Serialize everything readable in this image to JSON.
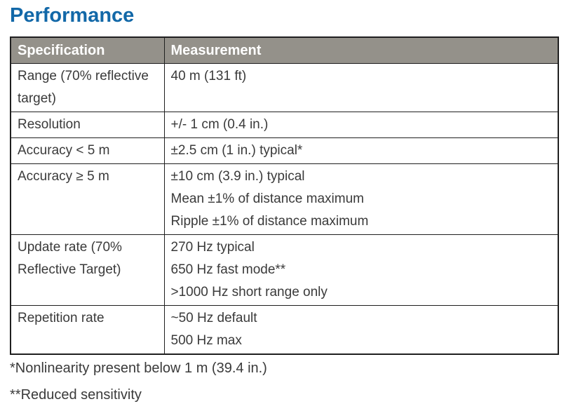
{
  "title": "Performance",
  "table": {
    "headers": [
      "Specification",
      "Measurement"
    ],
    "rows": [
      {
        "spec": "Range (70% reflective target)",
        "measurements": [
          "40 m (131 ft)"
        ]
      },
      {
        "spec": "Resolution",
        "measurements": [
          "+/- 1 cm (0.4 in.)"
        ]
      },
      {
        "spec": "Accuracy < 5 m",
        "measurements": [
          "±2.5 cm (1 in.) typical*"
        ]
      },
      {
        "spec": "Accuracy ≥ 5 m",
        "measurements": [
          "±10 cm (3.9 in.) typical",
          "Mean ±1% of distance maximum",
          "Ripple ±1% of distance maximum"
        ]
      },
      {
        "spec": "Update rate (70% Reflective Target)",
        "measurements": [
          "270 Hz typical",
          "650 Hz fast mode**",
          ">1000 Hz short range only"
        ]
      },
      {
        "spec": "Repetition rate",
        "measurements": [
          "~50 Hz default",
          "500 Hz max"
        ]
      }
    ]
  },
  "footnotes": [
    "*Nonlinearity present below 1 m (39.4 in.)",
    "**Reduced sensitivity"
  ],
  "colors": {
    "title": "#1268a8",
    "header_bg": "#94918a",
    "header_text": "#ffffff",
    "body_text": "#3a3a3a",
    "border": "#1f1f1f"
  }
}
